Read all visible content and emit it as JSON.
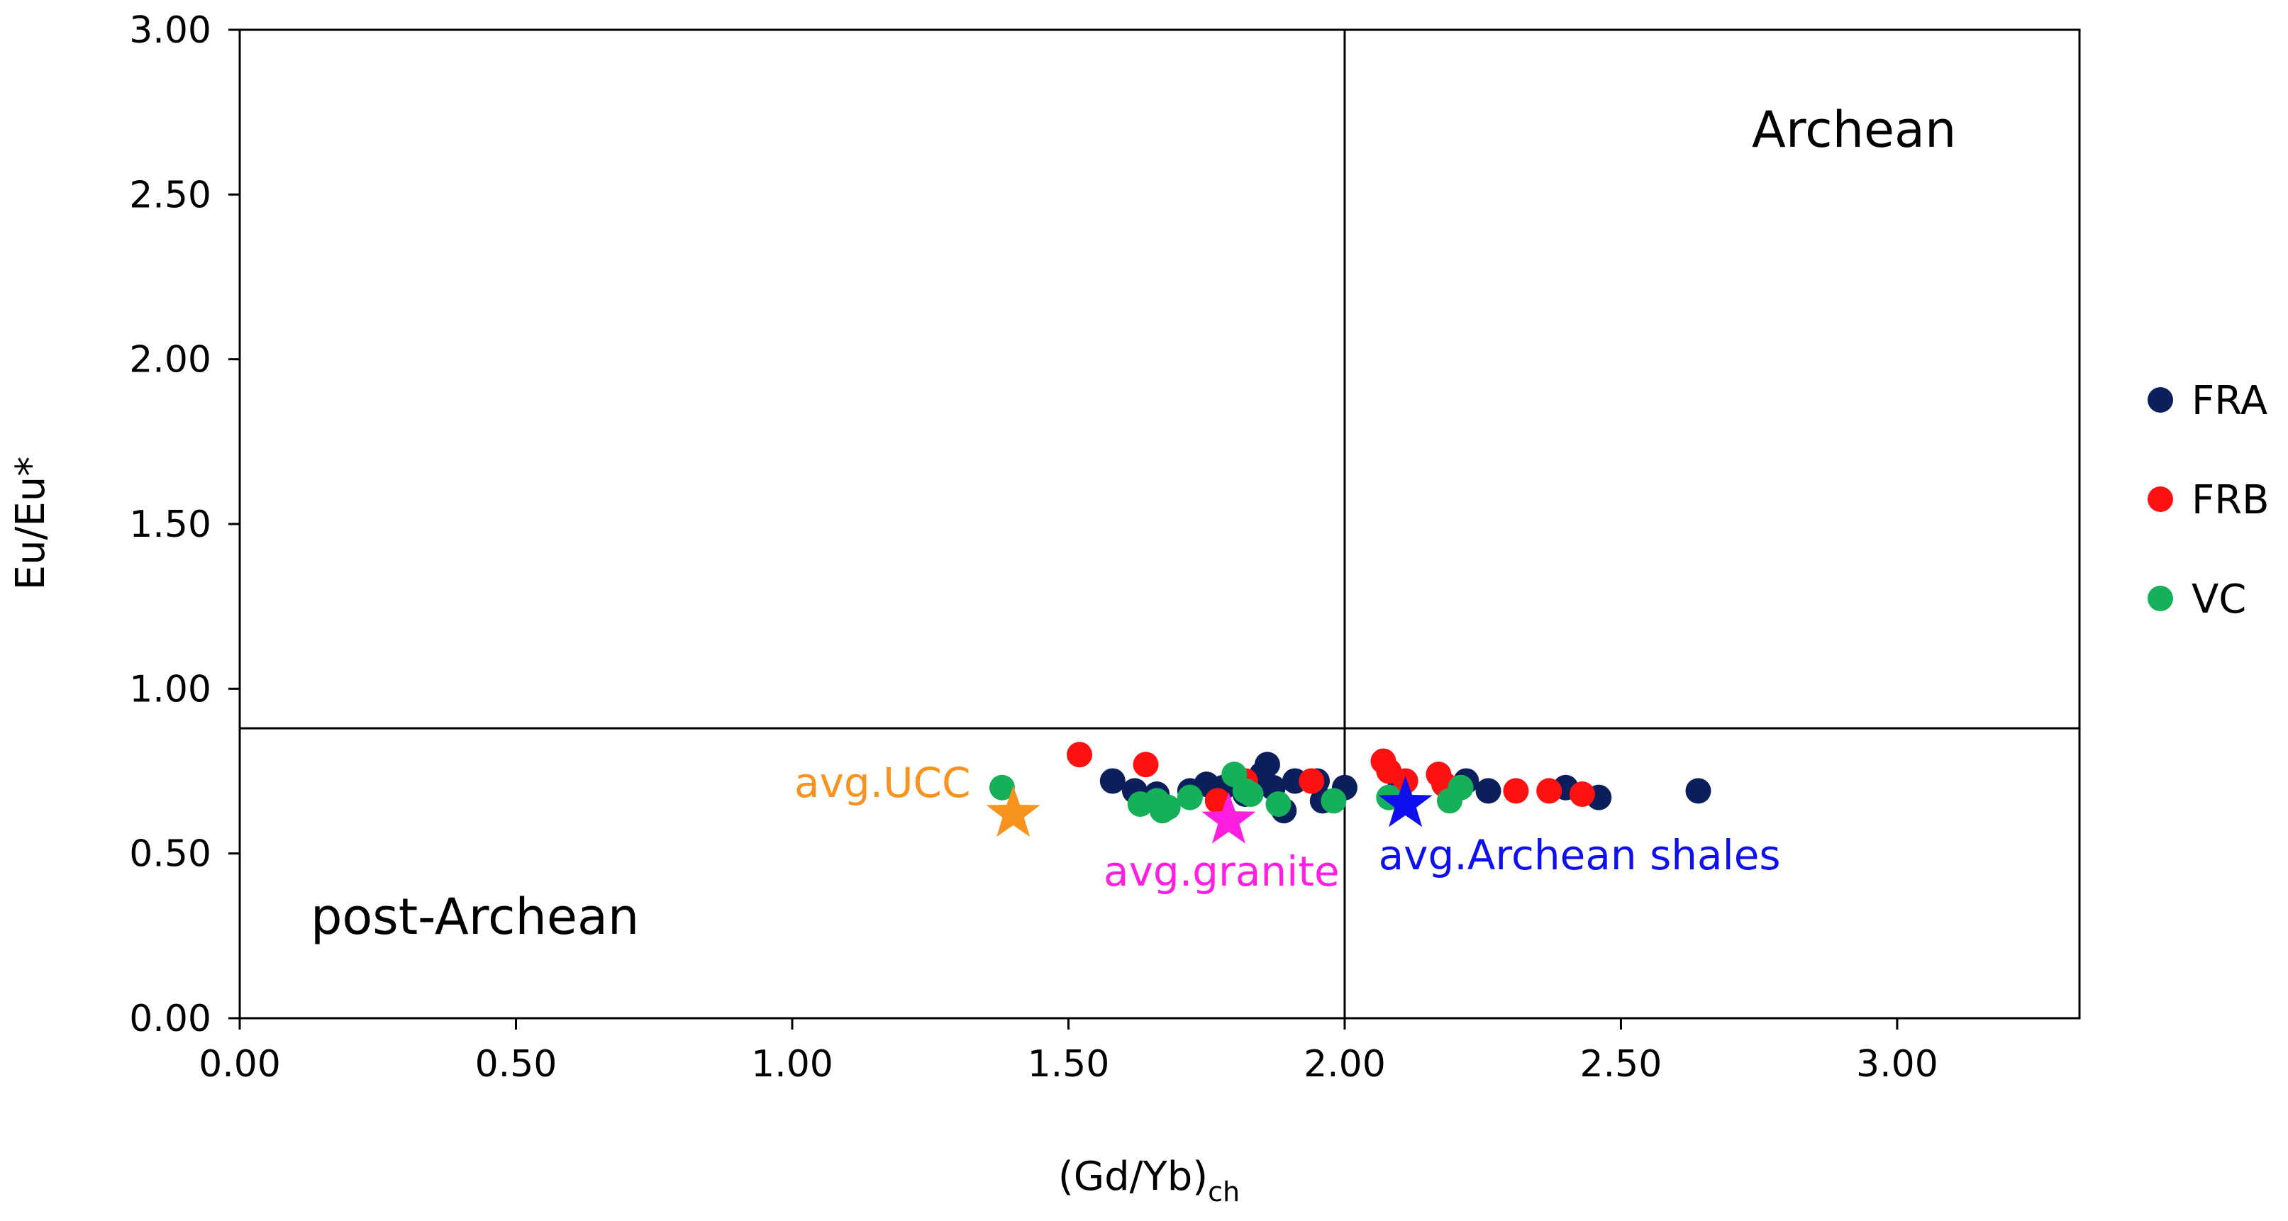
{
  "chart_data": {
    "type": "scatter",
    "xlabel": "(Gd/Yb)",
    "xlabel_subscript": "ch",
    "ylabel": "Eu/Eu*",
    "xlim": [
      0,
      3.33
    ],
    "ylim": [
      0,
      3.0
    ],
    "x_ticks": [
      "0.00",
      "0.50",
      "1.00",
      "1.50",
      "2.00",
      "2.50",
      "3.00"
    ],
    "y_ticks": [
      "0.00",
      "0.50",
      "1.00",
      "1.50",
      "2.00",
      "2.50",
      "3.00"
    ],
    "divider_x": 2.0,
    "divider_y": 0.88,
    "regions": {
      "upper_right": "Archean",
      "lower_left": "post-Archean"
    },
    "series": [
      {
        "name": "FRA",
        "color": "#0b1f5c",
        "points": [
          [
            1.58,
            0.72
          ],
          [
            1.62,
            0.69
          ],
          [
            1.66,
            0.68
          ],
          [
            1.72,
            0.69
          ],
          [
            1.75,
            0.71
          ],
          [
            1.78,
            0.7
          ],
          [
            1.82,
            0.68
          ],
          [
            1.85,
            0.74
          ],
          [
            1.86,
            0.77
          ],
          [
            1.87,
            0.7
          ],
          [
            1.89,
            0.63
          ],
          [
            1.91,
            0.72
          ],
          [
            1.95,
            0.72
          ],
          [
            1.96,
            0.66
          ],
          [
            2.0,
            0.7
          ],
          [
            2.1,
            0.7
          ],
          [
            2.18,
            0.71
          ],
          [
            2.22,
            0.72
          ],
          [
            2.26,
            0.69
          ],
          [
            2.4,
            0.7
          ],
          [
            2.46,
            0.67
          ],
          [
            2.64,
            0.69
          ]
        ]
      },
      {
        "name": "FRB",
        "color": "#ff1111",
        "points": [
          [
            1.52,
            0.8
          ],
          [
            1.64,
            0.77
          ],
          [
            1.77,
            0.66
          ],
          [
            1.82,
            0.72
          ],
          [
            1.94,
            0.72
          ],
          [
            2.07,
            0.78
          ],
          [
            2.08,
            0.75
          ],
          [
            2.11,
            0.72
          ],
          [
            2.17,
            0.74
          ],
          [
            2.18,
            0.71
          ],
          [
            2.31,
            0.69
          ],
          [
            2.37,
            0.69
          ],
          [
            2.43,
            0.68
          ]
        ]
      },
      {
        "name": "VC",
        "color": "#16b05a",
        "points": [
          [
            1.38,
            0.7
          ],
          [
            1.63,
            0.65
          ],
          [
            1.66,
            0.66
          ],
          [
            1.67,
            0.63
          ],
          [
            1.68,
            0.64
          ],
          [
            1.72,
            0.67
          ],
          [
            1.8,
            0.74
          ],
          [
            1.82,
            0.69
          ],
          [
            1.83,
            0.68
          ],
          [
            1.88,
            0.65
          ],
          [
            1.98,
            0.66
          ],
          [
            2.08,
            0.67
          ],
          [
            2.19,
            0.66
          ],
          [
            2.21,
            0.7
          ]
        ]
      }
    ],
    "reference_points": [
      {
        "name": "avg.UCC",
        "x": 1.4,
        "y": 0.62,
        "color": "#f7931e",
        "label_position": "upper-left"
      },
      {
        "name": "avg.granite",
        "x": 1.79,
        "y": 0.6,
        "color": "#ff1fe0",
        "label_position": "below"
      },
      {
        "name": "avg.Archean shales",
        "x": 2.11,
        "y": 0.65,
        "color": "#1010ee",
        "label_position": "below-right"
      }
    ],
    "legend": {
      "position": "right",
      "entries": [
        "FRA",
        "FRB",
        "VC"
      ]
    }
  }
}
